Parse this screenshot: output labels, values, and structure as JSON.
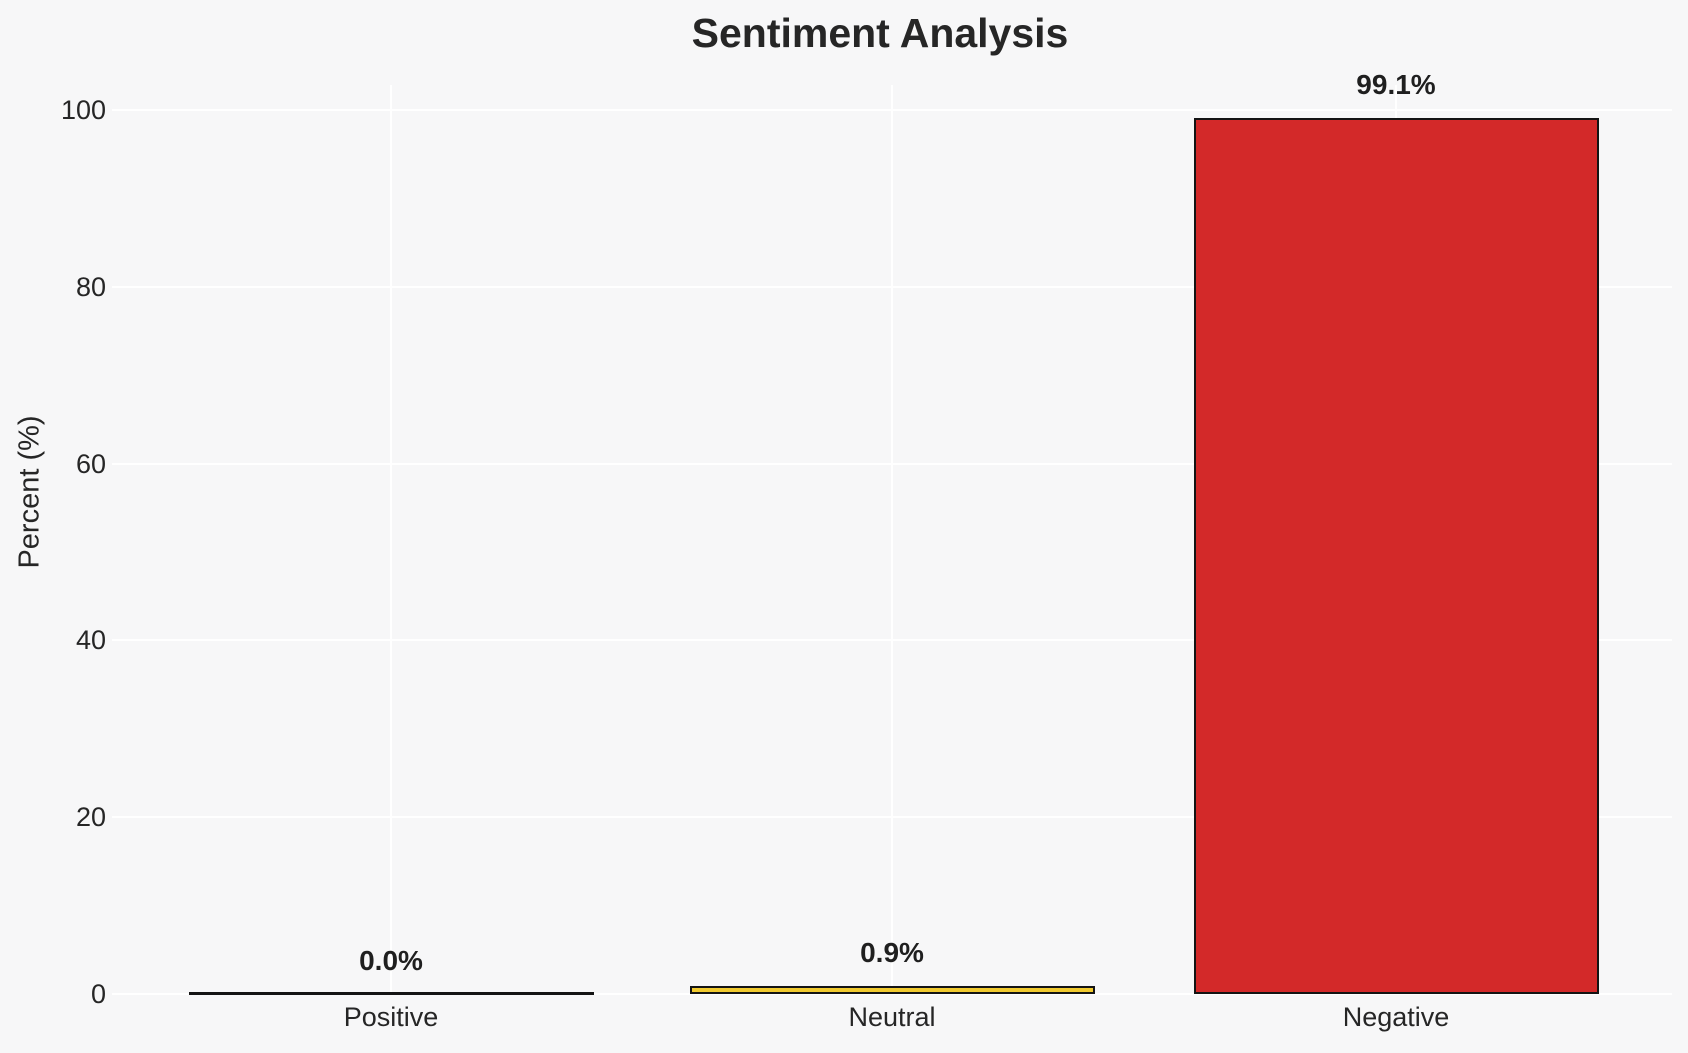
{
  "chart_data": {
    "type": "bar",
    "title": "Sentiment Analysis",
    "xlabel": "",
    "ylabel": "Percent (%)",
    "categories": [
      "Positive",
      "Neutral",
      "Negative"
    ],
    "values": [
      0.0,
      0.9,
      99.1
    ],
    "value_labels": [
      "0.0%",
      "0.9%",
      "99.1%"
    ],
    "yticks": [
      0,
      20,
      40,
      60,
      80,
      100
    ],
    "ylim": [
      0,
      102.8
    ],
    "grid": true,
    "legend": "none",
    "colors": {
      "bar_fills": [
        "none",
        "#f1ca2f",
        "#d32929"
      ],
      "bar_edge": "#141414",
      "background": "#f7f7f8",
      "gridline": "#ffffff",
      "text": "#262626"
    }
  }
}
